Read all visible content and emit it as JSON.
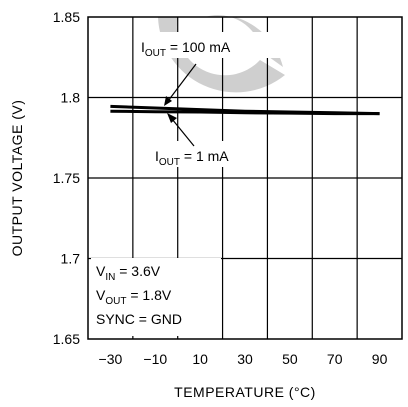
{
  "chart_data": {
    "type": "line",
    "xlabel": "TEMPERATURE (°C)",
    "ylabel": "OUTPUT VOLTAGE (V)",
    "xlim": [
      -40,
      100
    ],
    "ylim": [
      1.65,
      1.85
    ],
    "x_ticks": [
      -30,
      -10,
      10,
      30,
      50,
      70,
      90
    ],
    "y_ticks": [
      "1.65",
      "1.7",
      "1.75",
      "1.8",
      "1.85"
    ],
    "grid": true,
    "series": [
      {
        "name": "I_OUT = 100 mA",
        "x": [
          -30,
          -10,
          10,
          30,
          50,
          70,
          90
        ],
        "y": [
          1.7945,
          1.7935,
          1.7925,
          1.7915,
          1.791,
          1.7905,
          1.79
        ]
      },
      {
        "name": "I_OUT = 1 mA",
        "x": [
          -30,
          -10,
          10,
          30,
          50,
          70,
          90
        ],
        "y": [
          1.7915,
          1.7912,
          1.791,
          1.7905,
          1.7903,
          1.79,
          1.79
        ]
      }
    ],
    "annotations": {
      "iout_100": {
        "main": "I",
        "sub": "OUT",
        "rest": " = 100 mA"
      },
      "iout_1": {
        "main": "I",
        "sub": "OUT",
        "rest": " = 1 mA"
      },
      "conditions": [
        {
          "main": "V",
          "sub": "IN",
          "rest": " = 3.6V"
        },
        {
          "main": "V",
          "sub": "OUT",
          "rest": " = 1.8V"
        },
        {
          "main": "SYNC = GND",
          "sub": "",
          "rest": ""
        }
      ]
    },
    "colors": {
      "line": "#000000",
      "grid": "#000000",
      "watermark": "#cfcfcf"
    }
  }
}
